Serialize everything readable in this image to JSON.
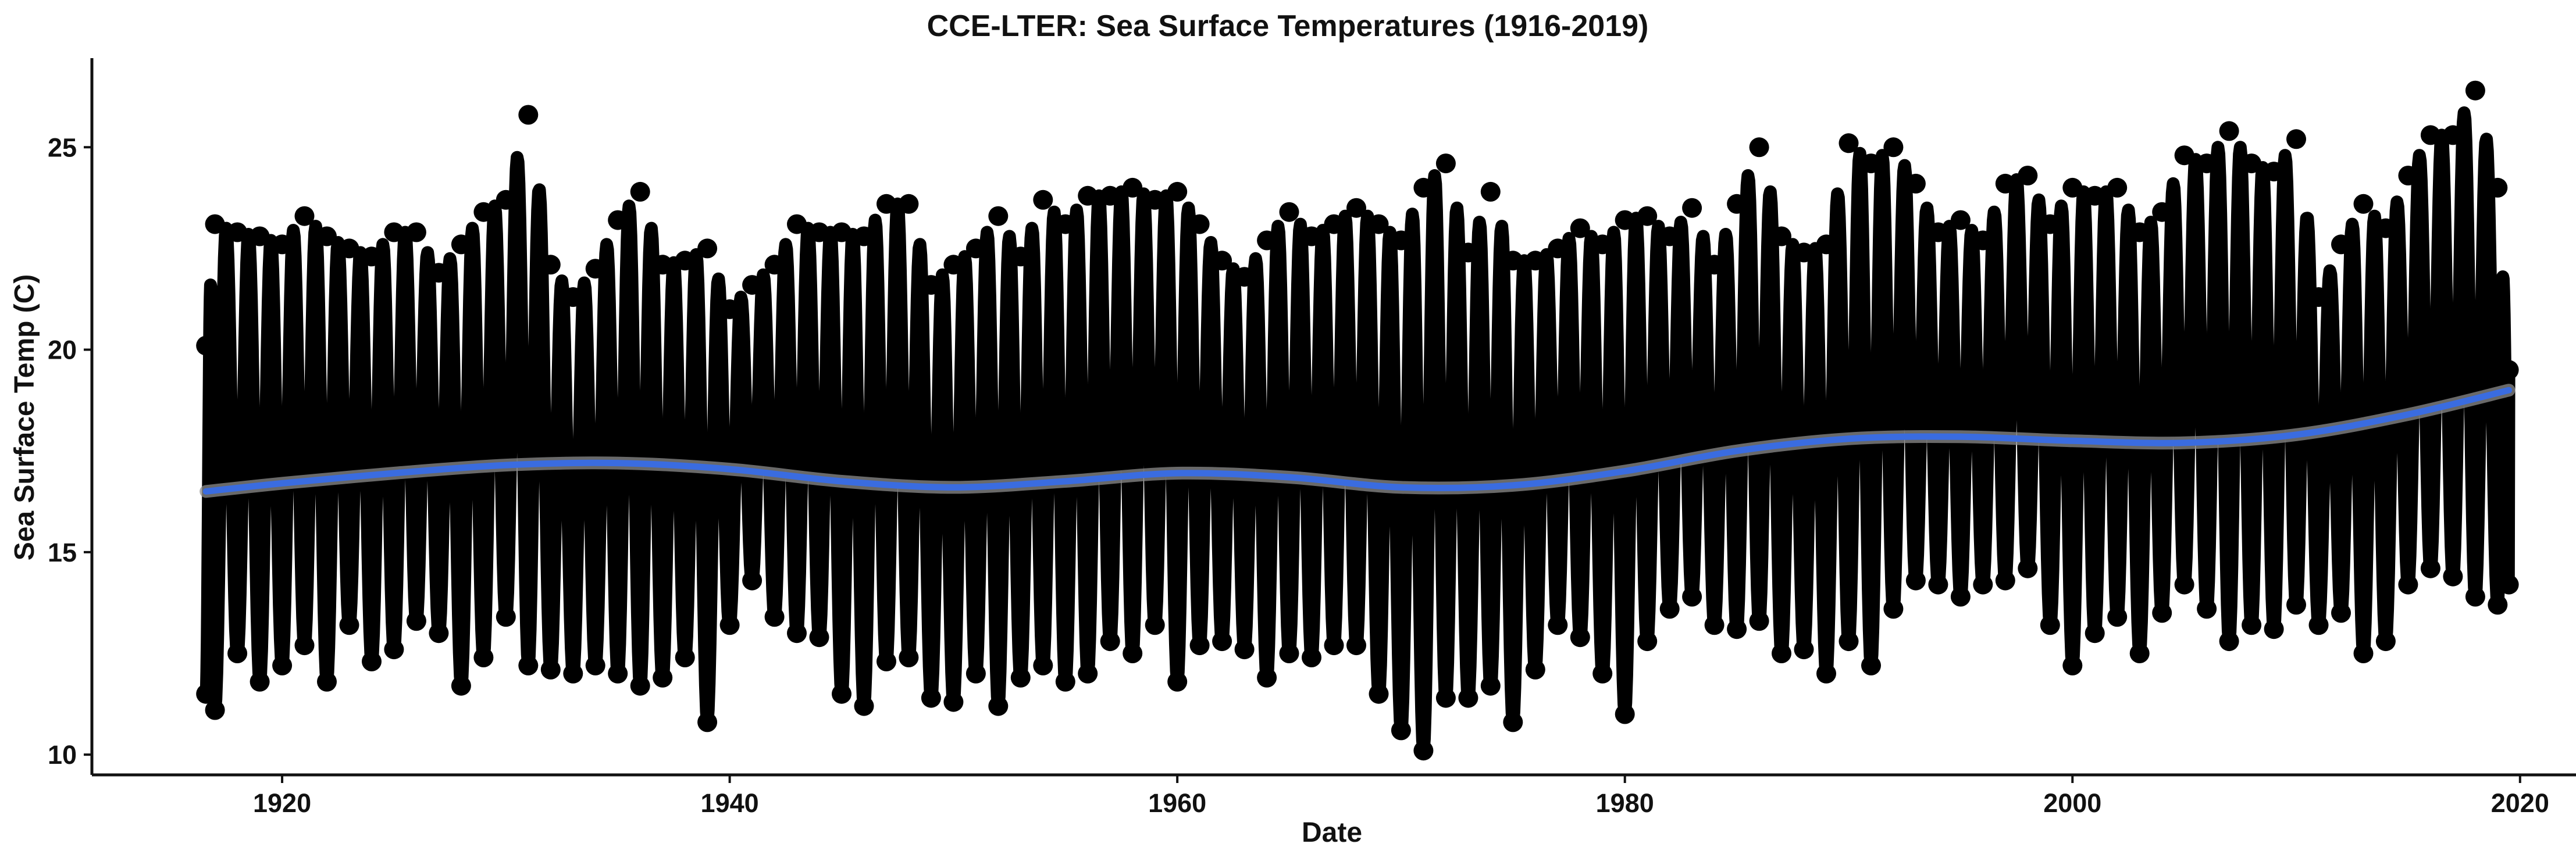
{
  "chart_data": {
    "type": "line",
    "title": "CCE-LTER: Sea Surface Temperatures (1916-2019)",
    "xlabel": "Date",
    "ylabel": "Sea Surface Temp (C)",
    "xlim": [
      1911.5,
      2022.5
    ],
    "ylim": [
      9.5,
      27.2
    ],
    "x_ticks": [
      1920,
      1940,
      1960,
      1980,
      2000,
      2020
    ],
    "y_ticks": [
      10,
      15,
      20,
      25
    ],
    "grid": false,
    "legend": "none",
    "colors": {
      "observations": "#000000",
      "trend": "#3A6CE0",
      "trend_band": "#8C8C8C"
    },
    "series": [
      {
        "values_note": "daily observations; seasonal cycle approximated by annual minima/maxima",
        "x": [
          1916.6,
          1917,
          1918,
          1919,
          1920,
          1921,
          1922,
          1923,
          1924,
          1925,
          1926,
          1927,
          1928,
          1929,
          1930,
          1931,
          1932,
          1933,
          1934,
          1935,
          1936,
          1937,
          1938,
          1939,
          1940,
          1941,
          1942,
          1943,
          1944,
          1945,
          1946,
          1947,
          1948,
          1949,
          1950,
          1951,
          1952,
          1953,
          1954,
          1955,
          1956,
          1957,
          1958,
          1959,
          1960,
          1961,
          1962,
          1963,
          1964,
          1965,
          1966,
          1967,
          1968,
          1969,
          1970,
          1971,
          1972,
          1973,
          1974,
          1975,
          1976,
          1977,
          1978,
          1979,
          1980,
          1981,
          1982,
          1983,
          1984,
          1985,
          1986,
          1987,
          1988,
          1989,
          1990,
          1991,
          1992,
          1993,
          1994,
          1995,
          1996,
          1997,
          1998,
          1999,
          2000,
          2001,
          2002,
          2003,
          2004,
          2005,
          2006,
          2007,
          2008,
          2009,
          2010,
          2011,
          2012,
          2013,
          2014,
          2015,
          2016,
          2017,
          2018,
          2019,
          2019.5
        ],
        "annual_min": [
          11.5,
          11.1,
          12.5,
          11.8,
          12.2,
          12.7,
          11.8,
          13.2,
          12.3,
          12.6,
          13.3,
          13.0,
          11.7,
          12.4,
          13.4,
          12.2,
          12.1,
          12.0,
          12.2,
          12.0,
          11.7,
          11.9,
          12.4,
          10.8,
          13.2,
          14.3,
          13.4,
          13.0,
          12.9,
          11.5,
          11.2,
          12.3,
          12.4,
          11.4,
          11.3,
          12.0,
          11.2,
          11.9,
          12.2,
          11.8,
          12.0,
          12.8,
          12.5,
          13.2,
          11.8,
          12.7,
          12.8,
          12.6,
          11.9,
          12.5,
          12.4,
          12.7,
          12.7,
          11.5,
          10.6,
          10.1,
          11.4,
          11.4,
          11.7,
          10.8,
          12.1,
          13.2,
          12.9,
          12.0,
          11.0,
          12.8,
          13.6,
          13.9,
          13.2,
          13.1,
          13.3,
          12.5,
          12.6,
          12.0,
          12.8,
          12.2,
          13.6,
          14.3,
          14.2,
          13.9,
          14.2,
          14.3,
          14.6,
          13.2,
          12.2,
          13.0,
          13.4,
          12.5,
          13.5,
          14.2,
          13.6,
          12.8,
          13.2,
          13.1,
          13.7,
          13.2,
          13.5,
          12.5,
          12.8,
          14.2,
          14.6,
          14.4,
          13.9,
          13.7,
          14.2
        ],
        "annual_max": [
          20.1,
          23.1,
          22.9,
          22.8,
          22.6,
          23.3,
          22.8,
          22.5,
          22.3,
          22.9,
          22.9,
          21.9,
          22.6,
          23.4,
          23.7,
          25.8,
          22.1,
          21.3,
          22.0,
          23.2,
          23.9,
          22.1,
          22.2,
          22.5,
          21.0,
          21.6,
          22.1,
          23.1,
          22.9,
          22.9,
          22.8,
          23.6,
          23.6,
          21.6,
          22.1,
          22.5,
          23.3,
          22.3,
          23.7,
          23.1,
          23.8,
          23.8,
          24.0,
          23.7,
          23.9,
          23.1,
          22.2,
          21.8,
          22.7,
          23.4,
          22.8,
          23.1,
          23.5,
          23.1,
          22.7,
          24.0,
          24.6,
          22.4,
          23.9,
          22.2,
          22.2,
          22.5,
          23.0,
          22.6,
          23.2,
          23.3,
          22.8,
          23.5,
          22.1,
          23.6,
          25.0,
          22.8,
          22.4,
          22.6,
          25.1,
          24.6,
          25.0,
          24.1,
          22.9,
          23.2,
          22.7,
          24.1,
          24.3,
          23.1,
          24.0,
          23.8,
          24.0,
          22.9,
          23.4,
          24.8,
          24.6,
          25.4,
          24.6,
          24.4,
          25.2,
          21.3,
          22.6,
          23.6,
          23.0,
          24.3,
          25.3,
          25.3,
          26.4,
          24.0,
          19.5
        ]
      },
      {
        "name_note": "smoothed trend",
        "x": [
          1916.6,
          1920,
          1925,
          1930,
          1935,
          1940,
          1945,
          1950,
          1955,
          1960,
          1965,
          1970,
          1975,
          1980,
          1985,
          1990,
          1995,
          2000,
          2005,
          2010,
          2015,
          2019.5
        ],
        "values": [
          16.5,
          16.7,
          16.95,
          17.15,
          17.2,
          17.05,
          16.75,
          16.6,
          16.75,
          16.95,
          16.85,
          16.6,
          16.65,
          17.0,
          17.5,
          17.8,
          17.85,
          17.75,
          17.7,
          17.9,
          18.4,
          19.0
        ]
      }
    ]
  }
}
